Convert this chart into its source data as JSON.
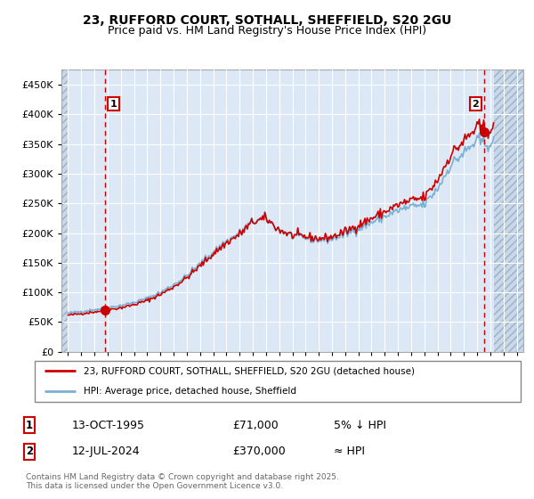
{
  "title_line1": "23, RUFFORD COURT, SOTHALL, SHEFFIELD, S20 2GU",
  "title_line2": "Price paid vs. HM Land Registry's House Price Index (HPI)",
  "bg_color": "#ffffff",
  "plot_bg_color": "#dce8f5",
  "grid_color": "#ffffff",
  "hatch_bg_color": "#c8d8e8",
  "ylim": [
    0,
    475000
  ],
  "yticks": [
    0,
    50000,
    100000,
    150000,
    200000,
    250000,
    300000,
    350000,
    400000,
    450000
  ],
  "ytick_labels": [
    "£0",
    "£50K",
    "£100K",
    "£150K",
    "£200K",
    "£250K",
    "£300K",
    "£350K",
    "£400K",
    "£450K"
  ],
  "xlim_start": 1992.5,
  "xlim_end": 2027.5,
  "xticks": [
    1993,
    1994,
    1995,
    1996,
    1997,
    1998,
    1999,
    2000,
    2001,
    2002,
    2003,
    2004,
    2005,
    2006,
    2007,
    2008,
    2009,
    2010,
    2011,
    2012,
    2013,
    2014,
    2015,
    2016,
    2017,
    2018,
    2019,
    2020,
    2021,
    2022,
    2023,
    2024,
    2025,
    2026,
    2027
  ],
  "sale1_x": 1995.79,
  "sale1_y": 71000,
  "sale2_x": 2024.54,
  "sale2_y": 370000,
  "vline1_x": 1995.79,
  "vline2_x": 2024.54,
  "red_line_color": "#cc0000",
  "blue_line_color": "#7ab0d4",
  "marker_color": "#cc0000",
  "dashed_vline_color": "#cc0000",
  "legend_label1": "23, RUFFORD COURT, SOTHALL, SHEFFIELD, S20 2GU (detached house)",
  "legend_label2": "HPI: Average price, detached house, Sheffield",
  "table_row1": [
    "1",
    "13-OCT-1995",
    "£71,000",
    "5% ↓ HPI"
  ],
  "table_row2": [
    "2",
    "12-JUL-2024",
    "£370,000",
    "≈ HPI"
  ],
  "footer": "Contains HM Land Registry data © Crown copyright and database right 2025.\nThis data is licensed under the Open Government Licence v3.0."
}
